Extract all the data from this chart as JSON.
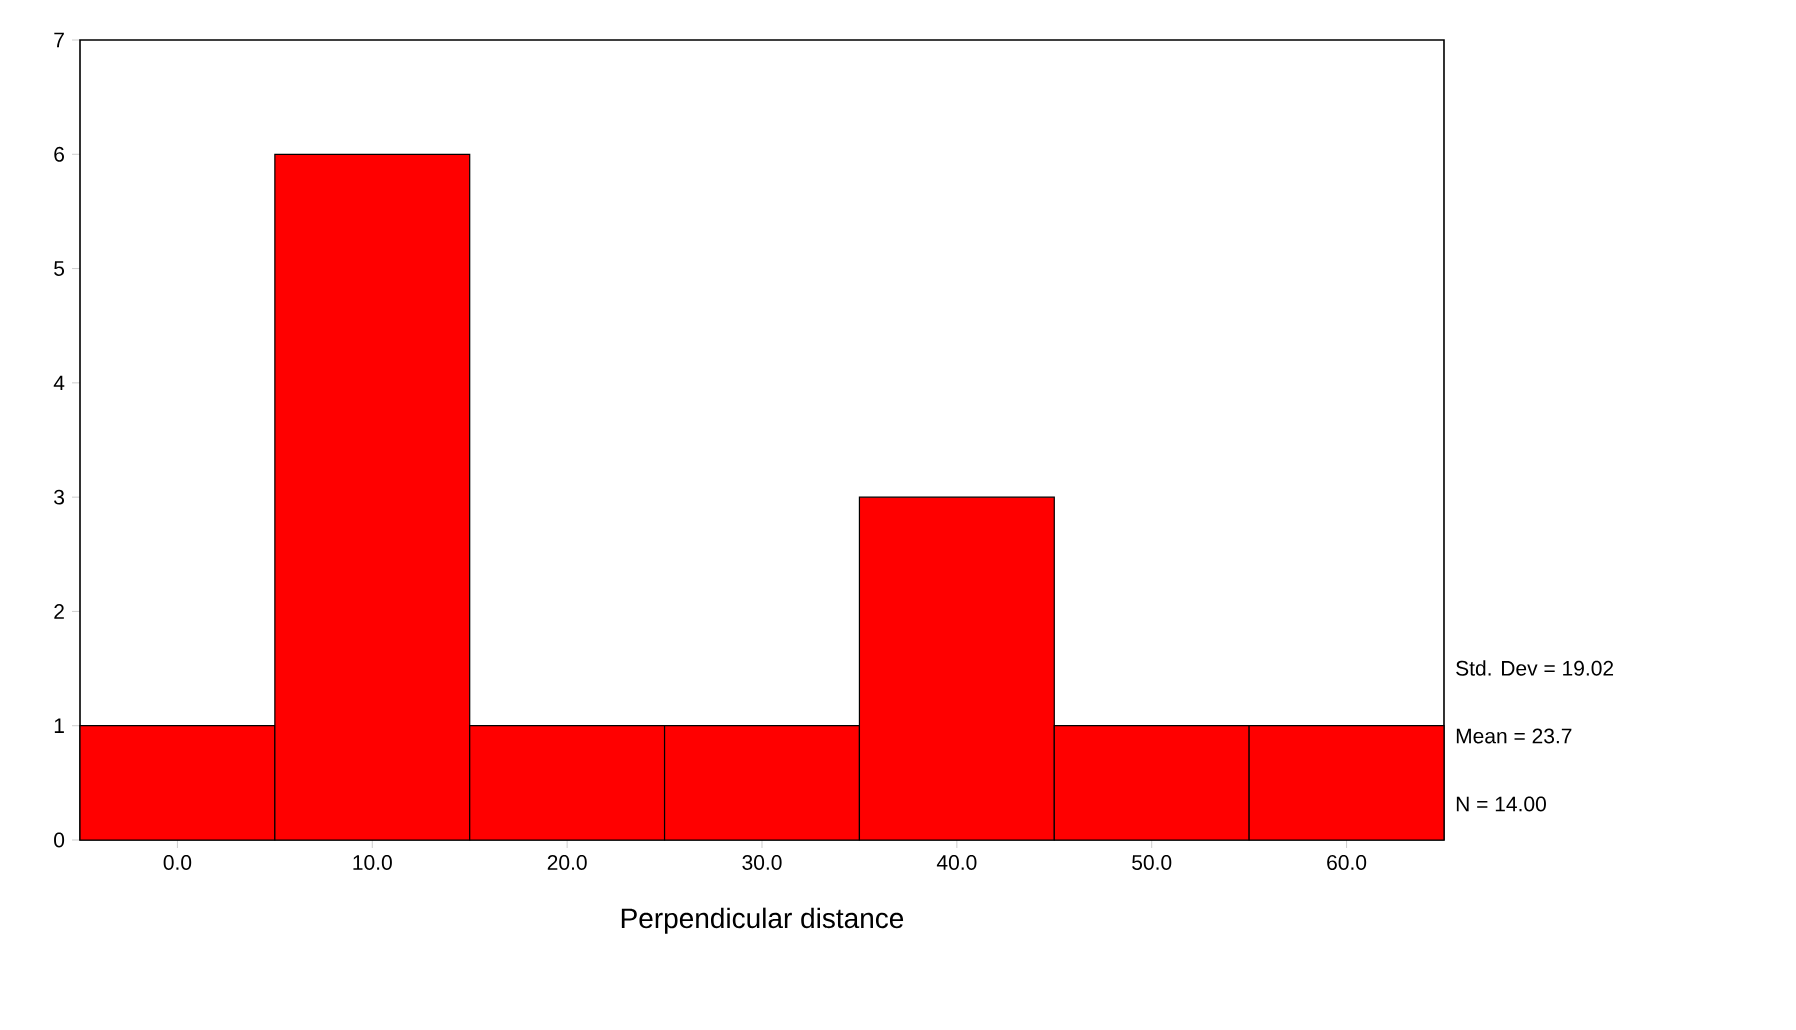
{
  "chart_data": {
    "type": "histogram",
    "xlabel": "Perpendicular distance",
    "bins": [
      -5,
      5,
      15,
      25,
      35,
      45,
      55,
      65
    ],
    "values": [
      1,
      6,
      1,
      1,
      3,
      1,
      1
    ],
    "color": "#ff0000",
    "xlim": [
      -5,
      65
    ],
    "xticks": [
      {
        "value": 0,
        "label": "0.0"
      },
      {
        "value": 10,
        "label": "10.0"
      },
      {
        "value": 20,
        "label": "20.0"
      },
      {
        "value": 30,
        "label": "30.0"
      },
      {
        "value": 40,
        "label": "40.0"
      },
      {
        "value": 50,
        "label": "50.0"
      },
      {
        "value": 60,
        "label": "60.0"
      }
    ],
    "ylim": [
      0,
      7
    ],
    "yticks": [
      0,
      1,
      2,
      3,
      4,
      5,
      6,
      7
    ],
    "annotations": [
      "Std. Dev = 19.02",
      "Mean = 23.7",
      "N = 14.00"
    ]
  }
}
